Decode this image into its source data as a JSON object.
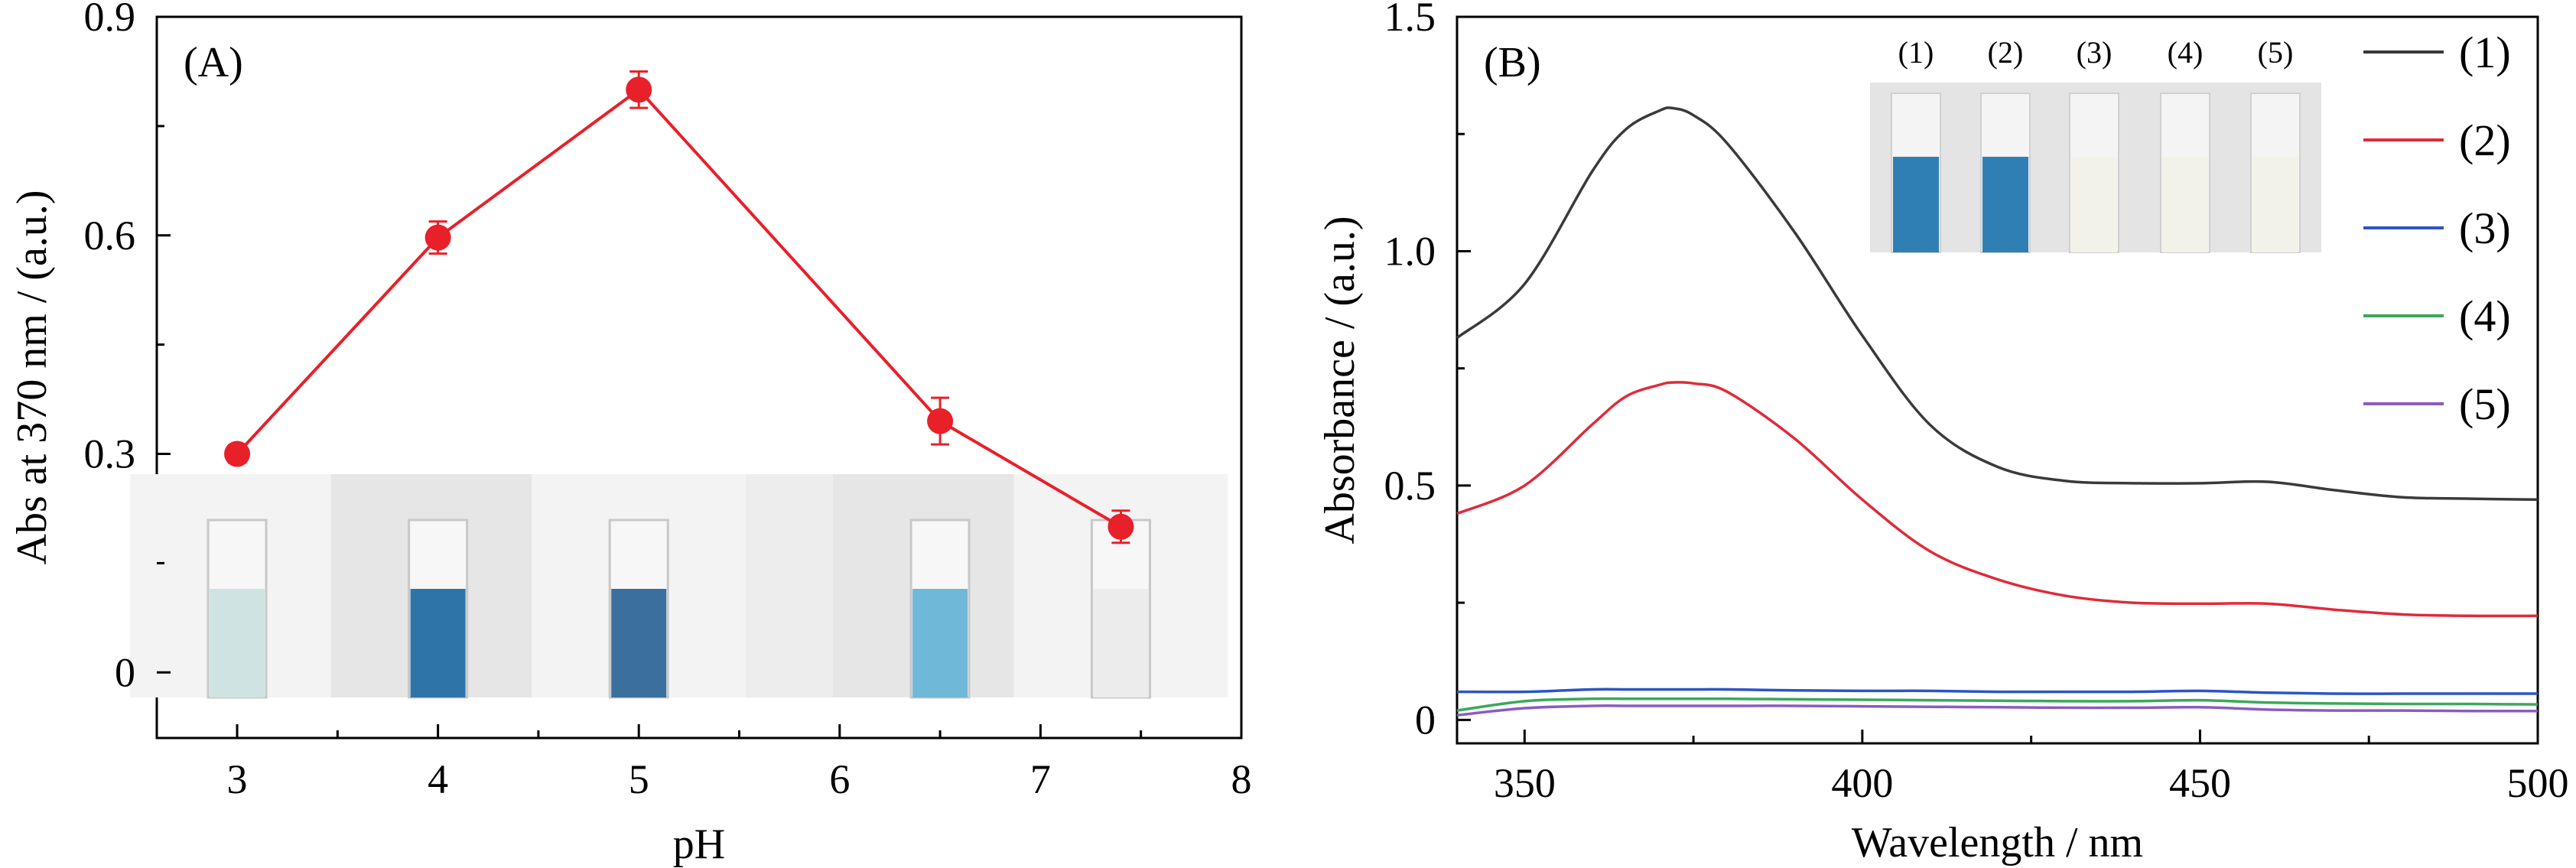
{
  "chart_data": [
    {
      "panel": "A",
      "type": "line",
      "panel_label": "(A)",
      "xlabel": "pH",
      "ylabel": "Abs at 370 nm / (a.u.)",
      "xlim": [
        2.6,
        8
      ],
      "ylim": [
        -0.09,
        0.9
      ],
      "xticks": [
        3,
        4,
        5,
        6,
        7,
        8
      ],
      "xtick_labels": [
        "3",
        "4",
        "5",
        "6",
        "7",
        "8"
      ],
      "yticks": [
        0,
        0.3,
        0.6,
        0.9
      ],
      "ytick_labels": [
        "0",
        "0.3",
        "0.6",
        "0.9"
      ],
      "color": "#e8202a",
      "series": [
        {
          "x": [
            3,
            4,
            5,
            6.5,
            7.4
          ],
          "values": [
            0.3,
            0.597,
            0.8,
            0.345,
            0.2
          ],
          "error": [
            0.012,
            0.022,
            0.025,
            0.032,
            0.022
          ]
        }
      ],
      "inset": {
        "description": "photo strip",
        "tubes": [
          {
            "x": 3,
            "fill": "#cfe3e2"
          },
          {
            "x": 4,
            "fill": "#2f74a8"
          },
          {
            "x": 5,
            "fill": "#3a6f9e"
          },
          {
            "x": 6.5,
            "fill": "#6fb8d8"
          },
          {
            "x": 7.4,
            "fill": "#ececec"
          }
        ]
      },
      "grid": false
    },
    {
      "panel": "B",
      "type": "line",
      "panel_label": "(B)",
      "xlabel": "Wavelength / nm",
      "ylabel": "Absorbance / (a.u.)",
      "xlim": [
        340,
        500
      ],
      "ylim": [
        -0.05,
        1.5
      ],
      "xticks": [
        350,
        400,
        450,
        500
      ],
      "xtick_labels": [
        "350",
        "400",
        "450",
        "500"
      ],
      "yticks": [
        0,
        0.5,
        1.0,
        1.5
      ],
      "ytick_labels": [
        "0",
        "0.5",
        "1.0",
        "1.5"
      ],
      "x": [
        340,
        350,
        360,
        365,
        370,
        372,
        375,
        380,
        390,
        400,
        410,
        420,
        430,
        440,
        450,
        460,
        470,
        480,
        490,
        500
      ],
      "series": [
        {
          "name": "(1)",
          "color": "#3a3a3a",
          "values": [
            0.815,
            0.93,
            1.17,
            1.26,
            1.3,
            1.305,
            1.29,
            1.23,
            1.04,
            0.82,
            0.63,
            0.54,
            0.51,
            0.505,
            0.505,
            0.508,
            0.49,
            0.475,
            0.472,
            0.47
          ]
        },
        {
          "name": "(2)",
          "color": "#e02a3a",
          "values": [
            0.44,
            0.5,
            0.63,
            0.69,
            0.715,
            0.72,
            0.718,
            0.7,
            0.6,
            0.47,
            0.36,
            0.3,
            0.265,
            0.25,
            0.248,
            0.248,
            0.235,
            0.225,
            0.222,
            0.222
          ]
        },
        {
          "name": "(3)",
          "color": "#2b54c6",
          "values": [
            0.06,
            0.06,
            0.065,
            0.065,
            0.065,
            0.065,
            0.065,
            0.065,
            0.063,
            0.062,
            0.062,
            0.06,
            0.06,
            0.06,
            0.062,
            0.058,
            0.056,
            0.056,
            0.056,
            0.056
          ]
        },
        {
          "name": "(4)",
          "color": "#3aa85a",
          "values": [
            0.02,
            0.04,
            0.045,
            0.045,
            0.045,
            0.045,
            0.045,
            0.045,
            0.044,
            0.043,
            0.042,
            0.041,
            0.04,
            0.04,
            0.042,
            0.037,
            0.035,
            0.034,
            0.034,
            0.033
          ]
        },
        {
          "name": "(5)",
          "color": "#8a5cc0",
          "values": [
            0.01,
            0.025,
            0.03,
            0.03,
            0.03,
            0.03,
            0.03,
            0.03,
            0.03,
            0.029,
            0.028,
            0.027,
            0.026,
            0.026,
            0.027,
            0.022,
            0.02,
            0.02,
            0.019,
            0.019
          ]
        }
      ],
      "legend": "right",
      "inset": {
        "description": "photo strip",
        "labels": [
          "(1)",
          "(2)",
          "(3)",
          "(4)",
          "(5)"
        ],
        "fills": [
          "#2f7fb5",
          "#2f7fb5",
          "#f2f2ea",
          "#f2f2ea",
          "#f2f2ea"
        ]
      },
      "grid": false
    }
  ]
}
